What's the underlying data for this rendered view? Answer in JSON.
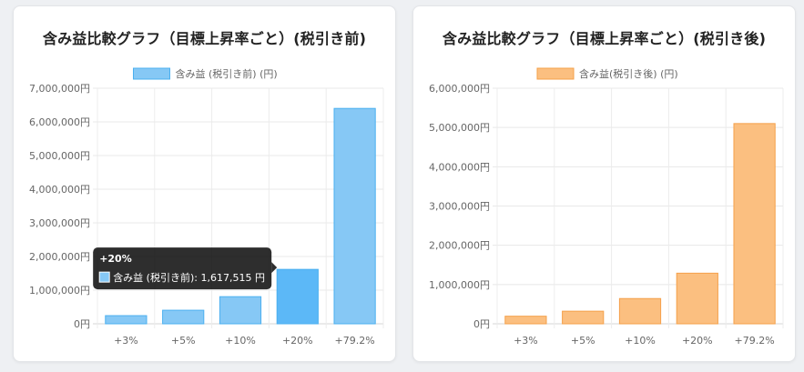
{
  "charts": [
    {
      "title": "含み益比較グラフ（目標上昇率ごと）(税引き前)",
      "legend": "含み益 (税引き前) (円)",
      "color": "#4bb0f0",
      "fill": "#86c8f5",
      "hover_fill": "#5cb8f7"
    },
    {
      "title": "含み益比較グラフ（目標上昇率ごと）(税引き後)",
      "legend": "含み益(税引き後) (円)",
      "color": "#f5a04a",
      "fill": "#fbbf80",
      "hover_fill": "#f8a862"
    }
  ],
  "tooltip": {
    "title": "+20%",
    "series": "含み益 (税引き前)",
    "value": "1,617,515 円"
  },
  "chart_data": [
    {
      "type": "bar",
      "title": "含み益比較グラフ（目標上昇率ごと）(税引き前)",
      "categories": [
        "+3%",
        "+5%",
        "+10%",
        "+20%",
        "+79.2%"
      ],
      "series": [
        {
          "name": "含み益 (税引き前) (円)",
          "values": [
            242000,
            403000,
            806000,
            1617515,
            6400000
          ]
        }
      ],
      "ylim": [
        0,
        7000000
      ],
      "yticks": [
        "0円",
        "1,000,000円",
        "2,000,000円",
        "3,000,000円",
        "4,000,000円",
        "5,000,000円",
        "6,000,000円",
        "7,000,000円"
      ],
      "grid": true,
      "legend_position": "top"
    },
    {
      "type": "bar",
      "title": "含み益比較グラフ（目標上昇率ごと）(税引き後)",
      "categories": [
        "+3%",
        "+5%",
        "+10%",
        "+20%",
        "+79.2%"
      ],
      "series": [
        {
          "name": "含み益(税引き後) (円)",
          "values": [
            193000,
            321000,
            643000,
            1289000,
            5100000
          ]
        }
      ],
      "ylim": [
        0,
        6000000
      ],
      "yticks": [
        "0円",
        "1,000,000円",
        "2,000,000円",
        "3,000,000円",
        "4,000,000円",
        "5,000,000円",
        "6,000,000円"
      ],
      "grid": true,
      "legend_position": "top"
    }
  ]
}
